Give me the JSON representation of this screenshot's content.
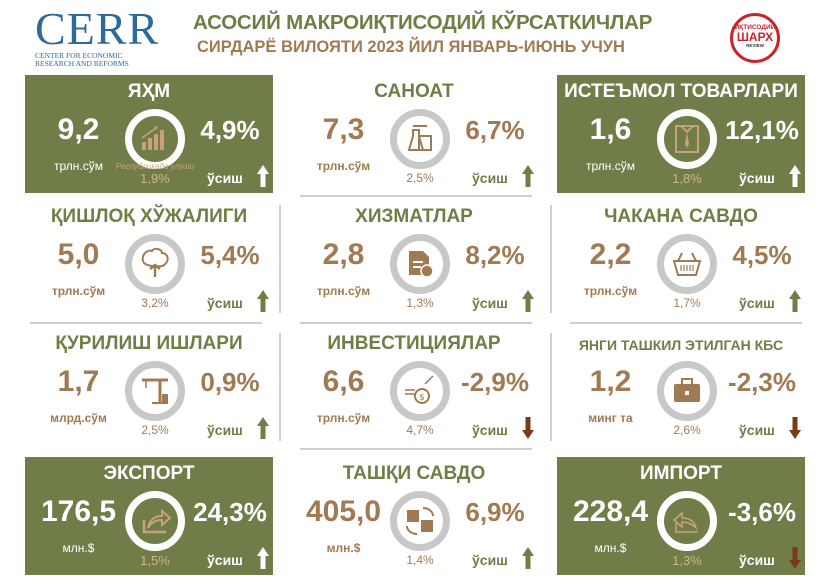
{
  "header": {
    "logo_main": "CERR",
    "logo_sub_line1": "CENTER FOR ECONOMIC",
    "logo_sub_line2": "RESEARCH AND REFORMS",
    "title": "АСОСИЙ МАКРОИҚТИСОДИЙ КЎРСАТКИЧЛАР",
    "subtitle": "СИРДАРЁ ВИЛОЯТИ 2023 ЙИЛ ЯНВАРЬ-ИЮНЬ УЧУН",
    "badge_top": "ИҚТИСОДИЙ",
    "badge_main": "ШАРХ",
    "badge_bottom": "REVIEW"
  },
  "colors": {
    "olive": "#707d48",
    "title_green": "#6e7f45",
    "brown": "#a07a52",
    "up_arrow": "#6e7f45",
    "down_arrow": "#7a3a14",
    "ring_grey": "#c8c8c8"
  },
  "cards": [
    {
      "title": "ЯҲМ",
      "value": "9,2",
      "unit": "трлн.сўм",
      "share_label": "Республикада улуши",
      "share": "1,9%",
      "growth": "4,9%",
      "growth_label": "ўсиш",
      "direction": "up",
      "icon": "growth-chart-icon",
      "filled": true
    },
    {
      "title": "САНОАТ",
      "value": "7,3",
      "unit": "трлн.сўм",
      "share": "2,5%",
      "growth": "6,7%",
      "growth_label": "ўсиш",
      "direction": "up",
      "icon": "factory-icon",
      "filled": false
    },
    {
      "title": "ИСТЕЪМОЛ ТОВАРЛАРИ",
      "value": "1,6",
      "unit": "трлн.сўм",
      "share": "1,8%",
      "growth": "12,1%",
      "growth_label": "ўсиш",
      "direction": "up",
      "icon": "shirt-icon",
      "filled": true
    },
    {
      "title": "ҚИШЛОҚ ХЎЖАЛИГИ",
      "value": "5,0",
      "unit": "трлн.сўм",
      "share": "3,2%",
      "growth": "5,4%",
      "growth_label": "ўсиш",
      "direction": "up",
      "icon": "tree-icon",
      "filled": false
    },
    {
      "title": "ХИЗМАТЛАР",
      "value": "2,8",
      "unit": "трлн.сўм",
      "share": "1,3%",
      "growth": "8,2%",
      "growth_label": "ўсиш",
      "direction": "up",
      "icon": "service-document-icon",
      "filled": false
    },
    {
      "title": "ЧАКАНА САВДО",
      "value": "2,2",
      "unit": "трлн.сўм",
      "share": "1,7%",
      "growth": "4,5%",
      "growth_label": "ўсиш",
      "direction": "up",
      "icon": "basket-icon",
      "filled": false
    },
    {
      "title": "ҚУРИЛИШ ИШЛАРИ",
      "value": "1,7",
      "unit": "млрд.сўм",
      "share": "2,5%",
      "growth": "0,9%",
      "growth_label": "ўсиш",
      "direction": "up",
      "icon": "crane-icon",
      "filled": false
    },
    {
      "title": "ИНВЕСТИЦИЯЛАР",
      "value": "6,6",
      "unit": "трлн.сўм",
      "share": "4,7%",
      "growth": "-2,9%",
      "growth_label": "ўсиш",
      "direction": "down",
      "icon": "money-bag-icon",
      "filled": false
    },
    {
      "title": "ЯНГИ ТАШКИЛ ЭТИЛГАН КБС",
      "value": "1,2",
      "unit": "минг та",
      "share": "2,6%",
      "growth": "-2,3%",
      "growth_label": "ўсиш",
      "direction": "down",
      "icon": "briefcase-icon",
      "filled": false
    },
    {
      "title": "ЭКСПОРТ",
      "value": "176,5",
      "unit": "млн.$",
      "share": "1,5%",
      "growth": "24,3%",
      "growth_label": "ўсиш",
      "direction": "up",
      "icon": "export-arrow-icon",
      "filled": true
    },
    {
      "title": "ТАШҚИ САВДО",
      "value": "405,0",
      "unit": "млн.$",
      "share": "1,4%",
      "growth": "6,9%",
      "growth_label": "ўсиш",
      "direction": "up",
      "icon": "exchange-icon",
      "filled": false
    },
    {
      "title": "ИМПОРТ",
      "value": "228,4",
      "unit": "млн.$",
      "share": "1,3%",
      "growth": "-3,6%",
      "growth_label": "ўсиш",
      "direction": "down",
      "icon": "import-arrow-icon",
      "filled": true
    }
  ]
}
